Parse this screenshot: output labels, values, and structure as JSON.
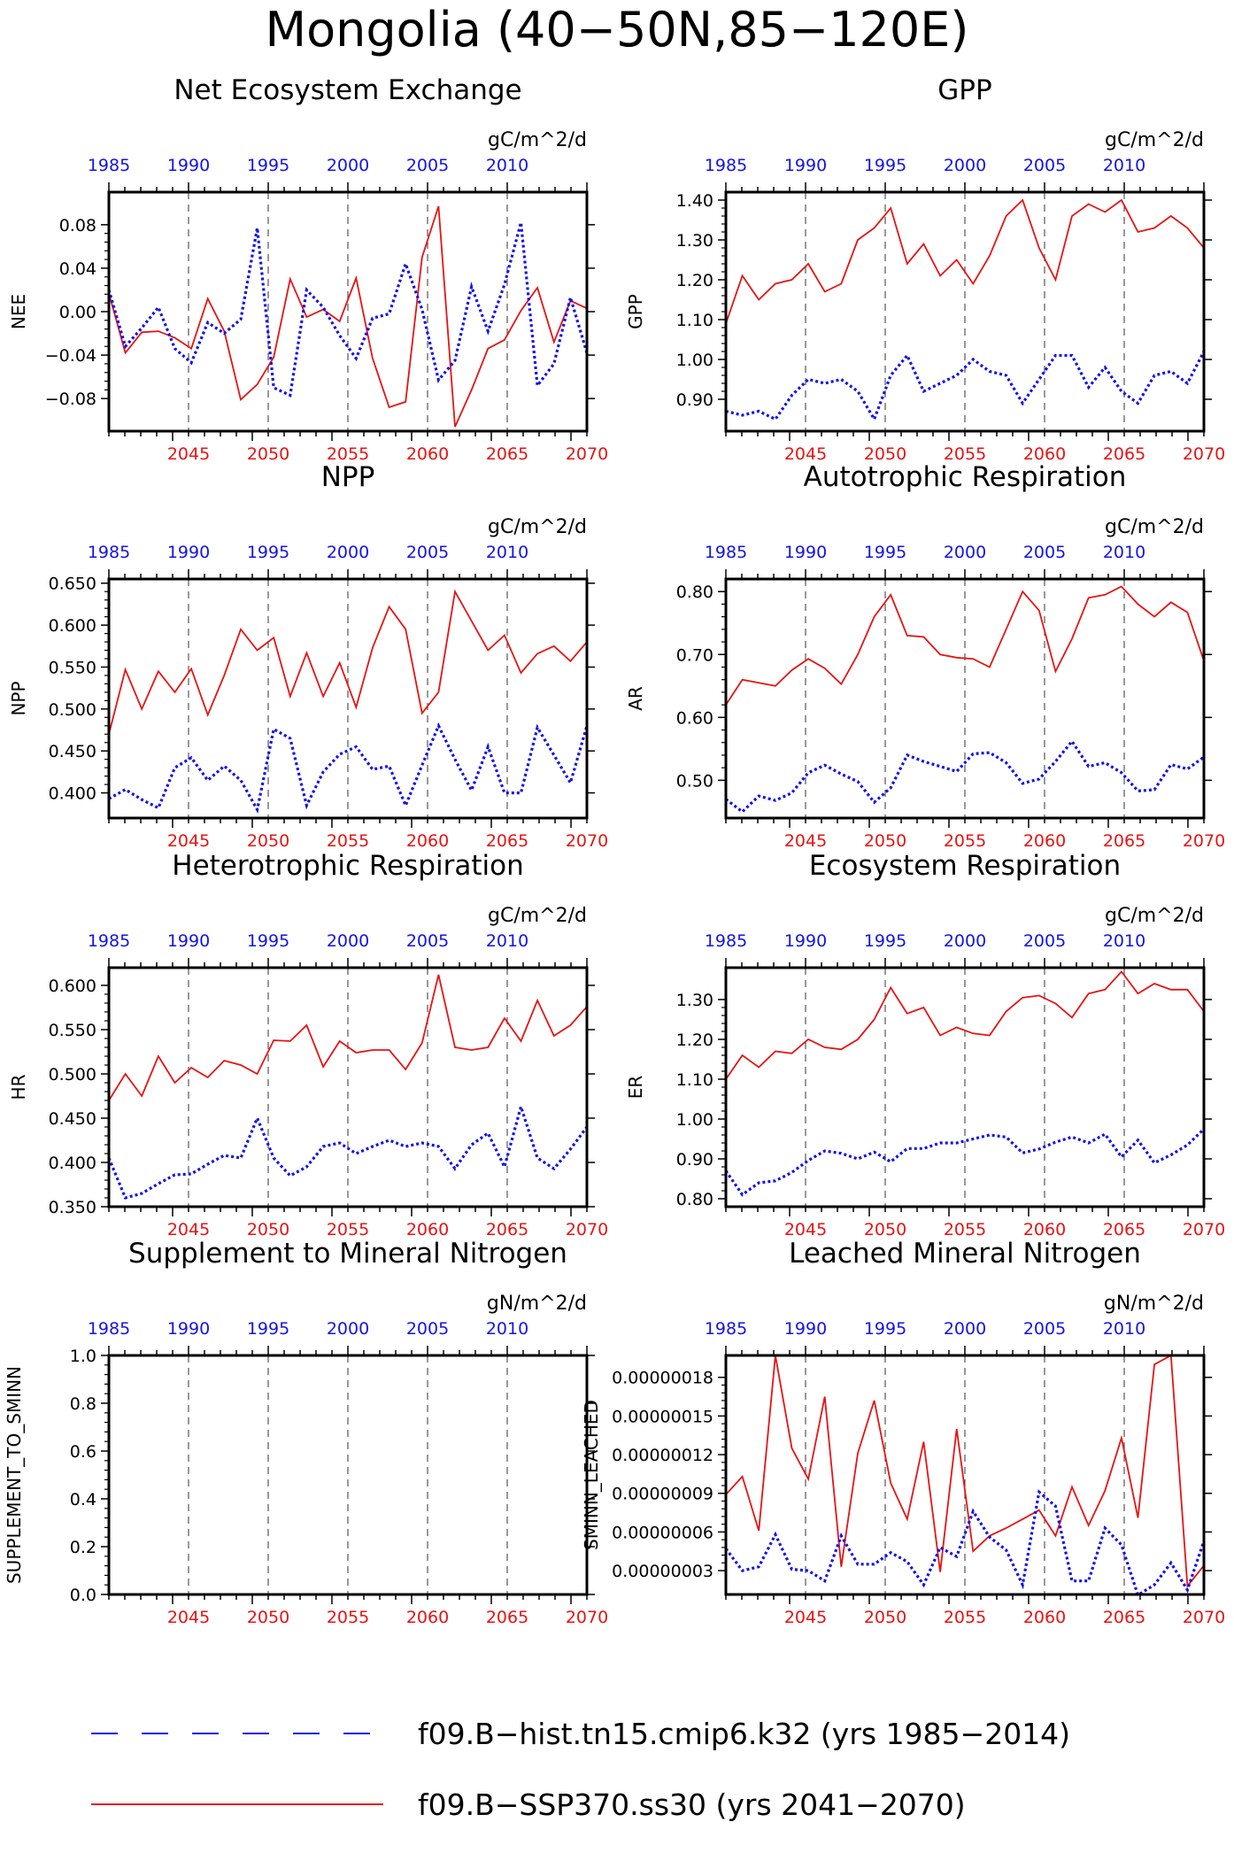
{
  "figure_title": "Mongolia (40−50N,85−120E)",
  "colors": {
    "hist": "#1414e6",
    "ssp": "#e61414",
    "axis": "#000000",
    "refline": "#555555"
  },
  "top_axis_ticks": [
    "1985",
    "1990",
    "1995",
    "2000",
    "2005",
    "2010"
  ],
  "bottom_axis_ticks": [
    "2045",
    "2050",
    "2055",
    "2060",
    "2065",
    "2070"
  ],
  "legend": [
    {
      "label": "f09.B−hist.tn15.cmip6.k32 (yrs 1985−2014)",
      "style": "dashed",
      "color": "#1414e6"
    },
    {
      "label": "f09.B−SSP370.ss30 (yrs 2041−2070)",
      "style": "solid",
      "color": "#e61414"
    }
  ],
  "chart_data": [
    {
      "type": "line",
      "title": "Net Ecosystem Exchange",
      "units": "gC/m^2/d",
      "ylabel": "NEE",
      "ylim": [
        -0.11,
        0.11
      ],
      "yticks": [
        -0.08,
        -0.04,
        0.0,
        0.04,
        0.08
      ],
      "ytick_labels": [
        "−0.08",
        "−0.04",
        "0.00",
        "0.04",
        "0.08"
      ],
      "hist_years": [
        1985,
        2014
      ],
      "ssp_years": [
        2041,
        2070
      ],
      "hist": [
        0.02,
        -0.032,
        -0.015,
        0.004,
        -0.034,
        -0.047,
        -0.01,
        -0.02,
        -0.007,
        0.077,
        -0.07,
        -0.077,
        0.02,
        0.004,
        -0.022,
        -0.043,
        -0.006,
        -0.002,
        0.044,
        0.002,
        -0.063,
        -0.045,
        0.023,
        -0.018,
        0.025,
        0.082,
        -0.068,
        -0.048,
        0.013,
        -0.038
      ],
      "ssp": [
        0.017,
        -0.038,
        -0.019,
        -0.018,
        -0.024,
        -0.034,
        0.012,
        -0.018,
        -0.081,
        -0.067,
        -0.042,
        0.03,
        -0.005,
        0.002,
        -0.009,
        0.031,
        -0.043,
        -0.088,
        -0.083,
        0.05,
        0.097,
        -0.106,
        -0.072,
        -0.034,
        -0.026,
        0.001,
        0.022,
        -0.028,
        0.01,
        0.003
      ]
    },
    {
      "type": "line",
      "title": "GPP",
      "units": "gC/m^2/d",
      "ylabel": "GPP",
      "ylim": [
        0.82,
        1.42
      ],
      "yticks": [
        0.9,
        1.0,
        1.1,
        1.2,
        1.3,
        1.4
      ],
      "ytick_labels": [
        "0.90",
        "1.00",
        "1.10",
        "1.20",
        "1.30",
        "1.40"
      ],
      "hist_years": [
        1985,
        2014
      ],
      "ssp_years": [
        2041,
        2070
      ],
      "hist": [
        0.87,
        0.86,
        0.87,
        0.85,
        0.91,
        0.95,
        0.94,
        0.95,
        0.92,
        0.85,
        0.96,
        1.01,
        0.92,
        0.94,
        0.96,
        1.0,
        0.97,
        0.96,
        0.89,
        0.95,
        1.01,
        1.01,
        0.93,
        0.98,
        0.92,
        0.89,
        0.96,
        0.97,
        0.94,
        1.02
      ],
      "ssp": [
        1.09,
        1.21,
        1.15,
        1.19,
        1.2,
        1.24,
        1.17,
        1.19,
        1.3,
        1.33,
        1.38,
        1.24,
        1.29,
        1.21,
        1.25,
        1.19,
        1.26,
        1.36,
        1.4,
        1.28,
        1.2,
        1.36,
        1.39,
        1.37,
        1.4,
        1.32,
        1.33,
        1.36,
        1.33,
        1.28
      ]
    },
    {
      "type": "line",
      "title": "NPP",
      "units": "gC/m^2/d",
      "ylabel": "NPP",
      "ylim": [
        0.37,
        0.655
      ],
      "yticks": [
        0.4,
        0.45,
        0.5,
        0.55,
        0.6,
        0.65
      ],
      "ytick_labels": [
        "0.400",
        "0.450",
        "0.500",
        "0.550",
        "0.600",
        "0.650"
      ],
      "hist_years": [
        1985,
        2014
      ],
      "ssp_years": [
        2041,
        2070
      ],
      "hist": [
        0.393,
        0.404,
        0.392,
        0.382,
        0.43,
        0.442,
        0.415,
        0.432,
        0.415,
        0.38,
        0.476,
        0.465,
        0.385,
        0.425,
        0.446,
        0.455,
        0.428,
        0.432,
        0.385,
        0.433,
        0.48,
        0.44,
        0.403,
        0.455,
        0.4,
        0.4,
        0.478,
        0.445,
        0.412,
        0.48
      ],
      "ssp": [
        0.47,
        0.547,
        0.5,
        0.545,
        0.52,
        0.548,
        0.493,
        0.54,
        0.595,
        0.57,
        0.585,
        0.515,
        0.567,
        0.515,
        0.555,
        0.502,
        0.573,
        0.622,
        0.595,
        0.495,
        0.52,
        0.64,
        0.605,
        0.57,
        0.588,
        0.543,
        0.566,
        0.575,
        0.557,
        0.58
      ]
    },
    {
      "type": "line",
      "title": "Autotrophic Respiration",
      "units": "gC/m^2/d",
      "ylabel": "AR",
      "ylim": [
        0.44,
        0.82
      ],
      "yticks": [
        0.5,
        0.6,
        0.7,
        0.8
      ],
      "ytick_labels": [
        "0.50",
        "0.60",
        "0.70",
        "0.80"
      ],
      "hist_years": [
        1985,
        2014
      ],
      "ssp_years": [
        2041,
        2070
      ],
      "hist": [
        0.47,
        0.45,
        0.475,
        0.468,
        0.48,
        0.512,
        0.524,
        0.51,
        0.498,
        0.465,
        0.488,
        0.54,
        0.53,
        0.522,
        0.514,
        0.542,
        0.544,
        0.528,
        0.495,
        0.502,
        0.53,
        0.562,
        0.522,
        0.528,
        0.512,
        0.483,
        0.485,
        0.525,
        0.518,
        0.537
      ],
      "ssp": [
        0.62,
        0.66,
        0.655,
        0.65,
        0.675,
        0.693,
        0.678,
        0.653,
        0.7,
        0.76,
        0.795,
        0.73,
        0.728,
        0.7,
        0.695,
        0.693,
        0.68,
        0.74,
        0.8,
        0.77,
        0.673,
        0.725,
        0.79,
        0.795,
        0.808,
        0.78,
        0.76,
        0.783,
        0.767,
        0.69
      ]
    },
    {
      "type": "line",
      "title": "Heterotrophic Respiration",
      "units": "gC/m^2/d",
      "ylabel": "HR",
      "ylim": [
        0.35,
        0.62
      ],
      "yticks": [
        0.35,
        0.4,
        0.45,
        0.5,
        0.55,
        0.6
      ],
      "ytick_labels": [
        "0.350",
        "0.400",
        "0.450",
        "0.500",
        "0.550",
        "0.600"
      ],
      "hist_years": [
        1985,
        2014
      ],
      "ssp_years": [
        2041,
        2070
      ],
      "hist": [
        0.405,
        0.36,
        0.365,
        0.376,
        0.386,
        0.387,
        0.398,
        0.408,
        0.405,
        0.45,
        0.405,
        0.385,
        0.395,
        0.418,
        0.422,
        0.41,
        0.418,
        0.425,
        0.418,
        0.422,
        0.418,
        0.393,
        0.42,
        0.433,
        0.395,
        0.463,
        0.405,
        0.393,
        0.415,
        0.44
      ],
      "ssp": [
        0.47,
        0.5,
        0.475,
        0.52,
        0.49,
        0.507,
        0.496,
        0.515,
        0.51,
        0.5,
        0.538,
        0.537,
        0.555,
        0.508,
        0.537,
        0.524,
        0.527,
        0.527,
        0.505,
        0.535,
        0.612,
        0.53,
        0.527,
        0.53,
        0.563,
        0.537,
        0.583,
        0.543,
        0.555,
        0.576
      ]
    },
    {
      "type": "line",
      "title": "Ecosystem Respiration",
      "units": "gC/m^2/d",
      "ylabel": "ER",
      "ylim": [
        0.78,
        1.38
      ],
      "yticks": [
        0.8,
        0.9,
        1.0,
        1.1,
        1.2,
        1.3
      ],
      "ytick_labels": [
        "0.80",
        "0.90",
        "1.00",
        "1.10",
        "1.20",
        "1.30"
      ],
      "hist_years": [
        1985,
        2014
      ],
      "ssp_years": [
        2041,
        2070
      ],
      "hist": [
        0.87,
        0.81,
        0.84,
        0.845,
        0.866,
        0.896,
        0.92,
        0.914,
        0.9,
        0.917,
        0.893,
        0.926,
        0.926,
        0.94,
        0.94,
        0.95,
        0.96,
        0.955,
        0.915,
        0.925,
        0.942,
        0.955,
        0.94,
        0.962,
        0.905,
        0.947,
        0.89,
        0.91,
        0.935,
        0.975
      ],
      "ssp": [
        1.1,
        1.16,
        1.13,
        1.17,
        1.165,
        1.2,
        1.18,
        1.175,
        1.2,
        1.25,
        1.33,
        1.265,
        1.28,
        1.21,
        1.23,
        1.215,
        1.21,
        1.27,
        1.305,
        1.31,
        1.29,
        1.255,
        1.315,
        1.325,
        1.37,
        1.315,
        1.34,
        1.325,
        1.325,
        1.27
      ]
    },
    {
      "type": "line",
      "title": "Supplement to Mineral Nitrogen",
      "units": "gN/m^2/d",
      "ylabel": "SUPPLEMENT_TO_SMINN",
      "ylim": [
        0.0,
        1.0
      ],
      "yticks": [
        0.0,
        0.2,
        0.4,
        0.6,
        0.8,
        1.0
      ],
      "ytick_labels": [
        "0.0",
        "0.2",
        "0.4",
        "0.6",
        "0.8",
        "1.0"
      ],
      "hist_years": [
        1985,
        2014
      ],
      "ssp_years": [
        2041,
        2070
      ],
      "hist": [],
      "ssp": []
    },
    {
      "type": "line",
      "title": "Leached Mineral Nitrogen",
      "units": "gN/m^2/d",
      "ylabel": "SMINN_LEACHED",
      "ylim": [
        1.15e-08,
        1.97e-07
      ],
      "yticks": [
        3e-08,
        6e-08,
        9e-08,
        1.2e-07,
        1.5e-07,
        1.8e-07
      ],
      "ytick_labels": [
        "0.00000003",
        "0.00000006",
        "0.00000009",
        "0.00000012",
        "0.00000015",
        "0.00000018"
      ],
      "hist_years": [
        1985,
        2014
      ],
      "ssp_years": [
        2041,
        2070
      ],
      "hist": [
        4.7e-08,
        3e-08,
        3.3e-08,
        5.8e-08,
        3.1e-08,
        3e-08,
        2.2e-08,
        5.7e-08,
        3.5e-08,
        3.5e-08,
        4.4e-08,
        3.7e-08,
        1.9e-08,
        4.8e-08,
        4.1e-08,
        7.6e-08,
        5.6e-08,
        4.6e-08,
        1.9e-08,
        9.1e-08,
        8e-08,
        2.2e-08,
        2.2e-08,
        6.3e-08,
        5e-08,
        1.1e-08,
        1.9e-08,
        3.6e-08,
        1.5e-08,
        5.3e-08
      ],
      "ssp": [
        8.9e-08,
        1.03e-07,
        6.1e-08,
        1.97e-07,
        1.25e-07,
        1.01e-07,
        1.65e-07,
        3.3e-08,
        1.21e-07,
        1.62e-07,
        9.8e-08,
        7e-08,
        1.3e-07,
        2.9e-08,
        1.4e-07,
        4.5e-08,
        5.7e-08,
        6.3e-08,
        7e-08,
        7.7e-08,
        5.7e-08,
        9.5e-08,
        6.5e-08,
        9.2e-08,
        1.33e-07,
        7.1e-08,
        1.9e-07,
        1.97e-07,
        1.8e-08,
        3.4e-08
      ]
    }
  ]
}
